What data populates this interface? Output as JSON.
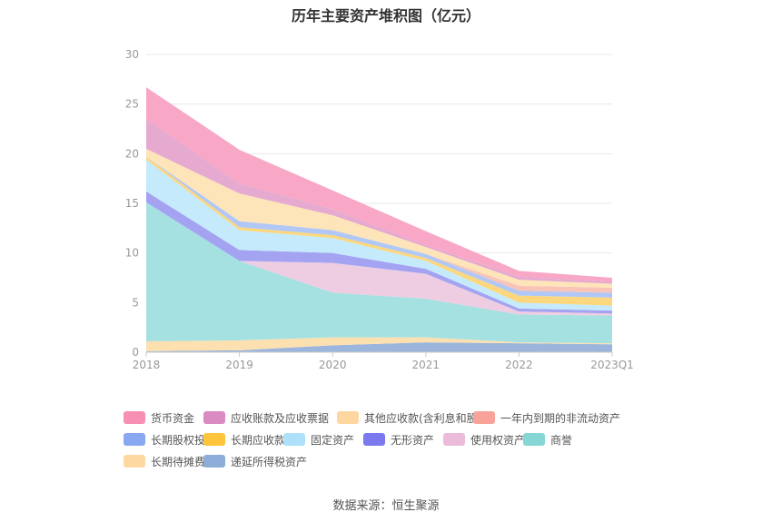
{
  "chart_data": {
    "type": "area",
    "stacked": true,
    "title": "历年主要资产堆积图（亿元）",
    "x": [
      "2018",
      "2019",
      "2020",
      "2021",
      "2022",
      "2023Q1"
    ],
    "ylim": [
      0,
      30
    ],
    "yticks": [
      0,
      5,
      10,
      15,
      20,
      25,
      30
    ],
    "grid": true,
    "legend_position": "bottom",
    "series": [
      {
        "name": "递延所得税资产",
        "color": "#9bb5dc",
        "values": [
          0.1,
          0.2,
          0.7,
          1.0,
          0.9,
          0.8
        ]
      },
      {
        "name": "长期待摊费用",
        "color": "#fde0b0",
        "values": [
          1.0,
          1.0,
          0.8,
          0.5,
          0.1,
          0.1
        ]
      },
      {
        "name": "商誉",
        "color": "#a6e1e1",
        "values": [
          14.0,
          8.0,
          4.5,
          3.9,
          2.8,
          2.8
        ]
      },
      {
        "name": "使用权资产",
        "color": "#eecde3",
        "values": [
          0.0,
          0.0,
          3.0,
          2.5,
          0.3,
          0.2
        ]
      },
      {
        "name": "无形资产",
        "color": "#a3a3f2",
        "values": [
          1.1,
          1.1,
          1.0,
          0.5,
          0.3,
          0.3
        ]
      },
      {
        "name": "固定资产",
        "color": "#c5eafb",
        "values": [
          3.2,
          2.0,
          1.5,
          0.8,
          0.6,
          0.5
        ]
      },
      {
        "name": "长期应收款",
        "color": "#fcd77d",
        "values": [
          0.3,
          0.3,
          0.3,
          0.3,
          0.7,
          0.8
        ]
      },
      {
        "name": "长期股权投资",
        "color": "#b1c7f5",
        "values": [
          0.0,
          0.6,
          0.5,
          0.4,
          0.5,
          0.5
        ]
      },
      {
        "name": "一年内到期的非流动资产",
        "color": "#f9c3b8",
        "values": [
          0.0,
          0.0,
          0.0,
          0.0,
          0.5,
          0.5
        ]
      },
      {
        "name": "其他应收款(含利息和股利)",
        "color": "#fde4b9",
        "values": [
          0.8,
          2.8,
          1.5,
          0.7,
          0.6,
          0.4
        ]
      },
      {
        "name": "应收账款及应收票据",
        "color": "#e6a9cf",
        "values": [
          3.0,
          1.0,
          0.6,
          0.2,
          0.3,
          0.2
        ]
      },
      {
        "name": "货币资金",
        "color": "#f8a7c6",
        "values": [
          3.2,
          3.4,
          1.9,
          1.4,
          0.6,
          0.4
        ]
      }
    ],
    "legend": {
      "rows": [
        [
          {
            "name": "货币资金",
            "color": "#f78fb4"
          },
          {
            "name": "应收账款及应收票据",
            "color": "#da8bc2"
          },
          {
            "name": "其他应收款(含利息和股利)",
            "color": "#fdd79f"
          },
          {
            "name": "一年内到期的非流动资产",
            "color": "#f8a39a"
          }
        ],
        [
          {
            "name": "长期股权投资",
            "color": "#8aa8f2"
          },
          {
            "name": "长期应收款",
            "color": "#fdc43c"
          },
          {
            "name": "固定资产",
            "color": "#aee1f9"
          },
          {
            "name": "无形资产",
            "color": "#7a7aee"
          },
          {
            "name": "使用权资产",
            "color": "#ebbcd9"
          },
          {
            "name": "商誉",
            "color": "#86d6d6"
          }
        ],
        [
          {
            "name": "长期待摊费用",
            "color": "#fdd9a1"
          },
          {
            "name": "递延所得税资产",
            "color": "#8eacd8"
          }
        ]
      ]
    }
  },
  "source": "数据来源：恒生聚源"
}
